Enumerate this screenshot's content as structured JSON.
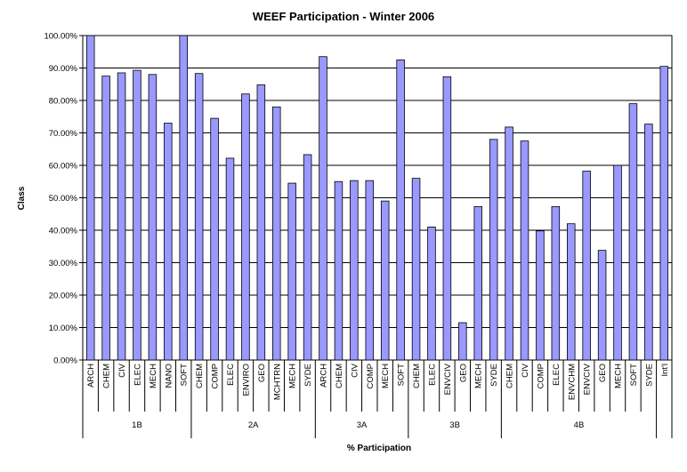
{
  "chart_data": {
    "type": "bar",
    "title": "WEEF Participation - Winter 2006",
    "xlabel": "% Participation",
    "ylabel": "Class",
    "ylim": [
      0,
      1
    ],
    "yticks": [
      "0.00%",
      "10.00%",
      "20.00%",
      "30.00%",
      "40.00%",
      "50.00%",
      "60.00%",
      "70.00%",
      "80.00%",
      "90.00%",
      "100.00%"
    ],
    "grid": true,
    "legend": "none",
    "bar_color": "#9999ff",
    "groups": [
      {
        "name": "1B",
        "categories": [
          "ARCH",
          "CHEM",
          "CIV",
          "ELEC",
          "MECH",
          "NANO",
          "SOFT"
        ],
        "values": [
          1.0,
          0.875,
          0.885,
          0.893,
          0.88,
          0.73,
          1.0
        ]
      },
      {
        "name": "2A",
        "categories": [
          "CHEM",
          "COMP",
          "ELEC",
          "ENVIRO",
          "GEO",
          "MCHTRN",
          "MECH",
          "SYDE"
        ],
        "values": [
          0.883,
          0.745,
          0.622,
          0.82,
          0.848,
          0.78,
          0.545,
          0.633
        ]
      },
      {
        "name": "3A",
        "categories": [
          "ARCH",
          "CHEM",
          "CIV",
          "COMP",
          "MECH",
          "SOFT"
        ],
        "values": [
          0.935,
          0.55,
          0.553,
          0.553,
          0.49,
          0.925
        ]
      },
      {
        "name": "3B",
        "categories": [
          "CHEM",
          "ELEC",
          "ENVCIV",
          "GEO",
          "MECH",
          "SYDE"
        ],
        "values": [
          0.56,
          0.41,
          0.873,
          0.115,
          0.473,
          0.68
        ]
      },
      {
        "name": "4B",
        "categories": [
          "CHEM",
          "CIV",
          "COMP",
          "ELEC",
          "ENVCHM",
          "ENVCIV",
          "GEO",
          "MECH",
          "SOFT",
          "SYDE"
        ],
        "values": [
          0.718,
          0.675,
          0.398,
          0.473,
          0.42,
          0.582,
          0.338,
          0.6,
          0.79,
          0.727
        ]
      },
      {
        "name": "",
        "categories": [
          "Int'l"
        ],
        "values": [
          0.905
        ]
      }
    ]
  }
}
